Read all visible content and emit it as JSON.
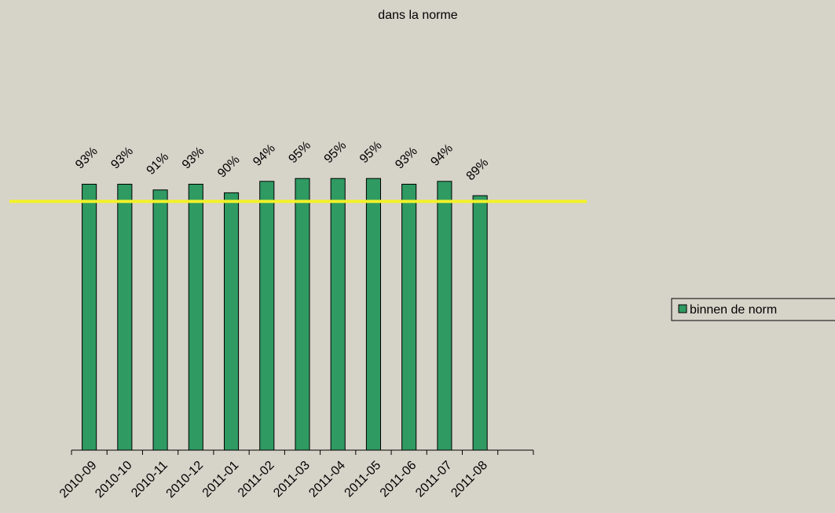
{
  "chart_data": {
    "type": "bar",
    "title": "dans la norme",
    "categories": [
      "2010-09",
      "2010-10",
      "2010-11",
      "2010-12",
      "2011-01",
      "2011-02",
      "2011-03",
      "2011-04",
      "2011-05",
      "2011-06",
      "2011-07",
      "2011-08",
      null
    ],
    "series": [
      {
        "name": "binnen de norm",
        "color": "#2f9a62",
        "values": [
          93,
          93,
          91,
          93,
          90,
          94,
          95,
          95,
          95,
          93,
          94,
          89,
          null
        ],
        "value_labels": [
          "93%",
          "93%",
          "91%",
          "93%",
          "90%",
          "94%",
          "95%",
          "95%",
          "95%",
          "93%",
          "94%",
          "89%",
          null
        ]
      }
    ],
    "reference_line": {
      "value": 87,
      "color": "#f2f229"
    },
    "ylim": [
      0,
      100
    ],
    "legend": "right"
  }
}
